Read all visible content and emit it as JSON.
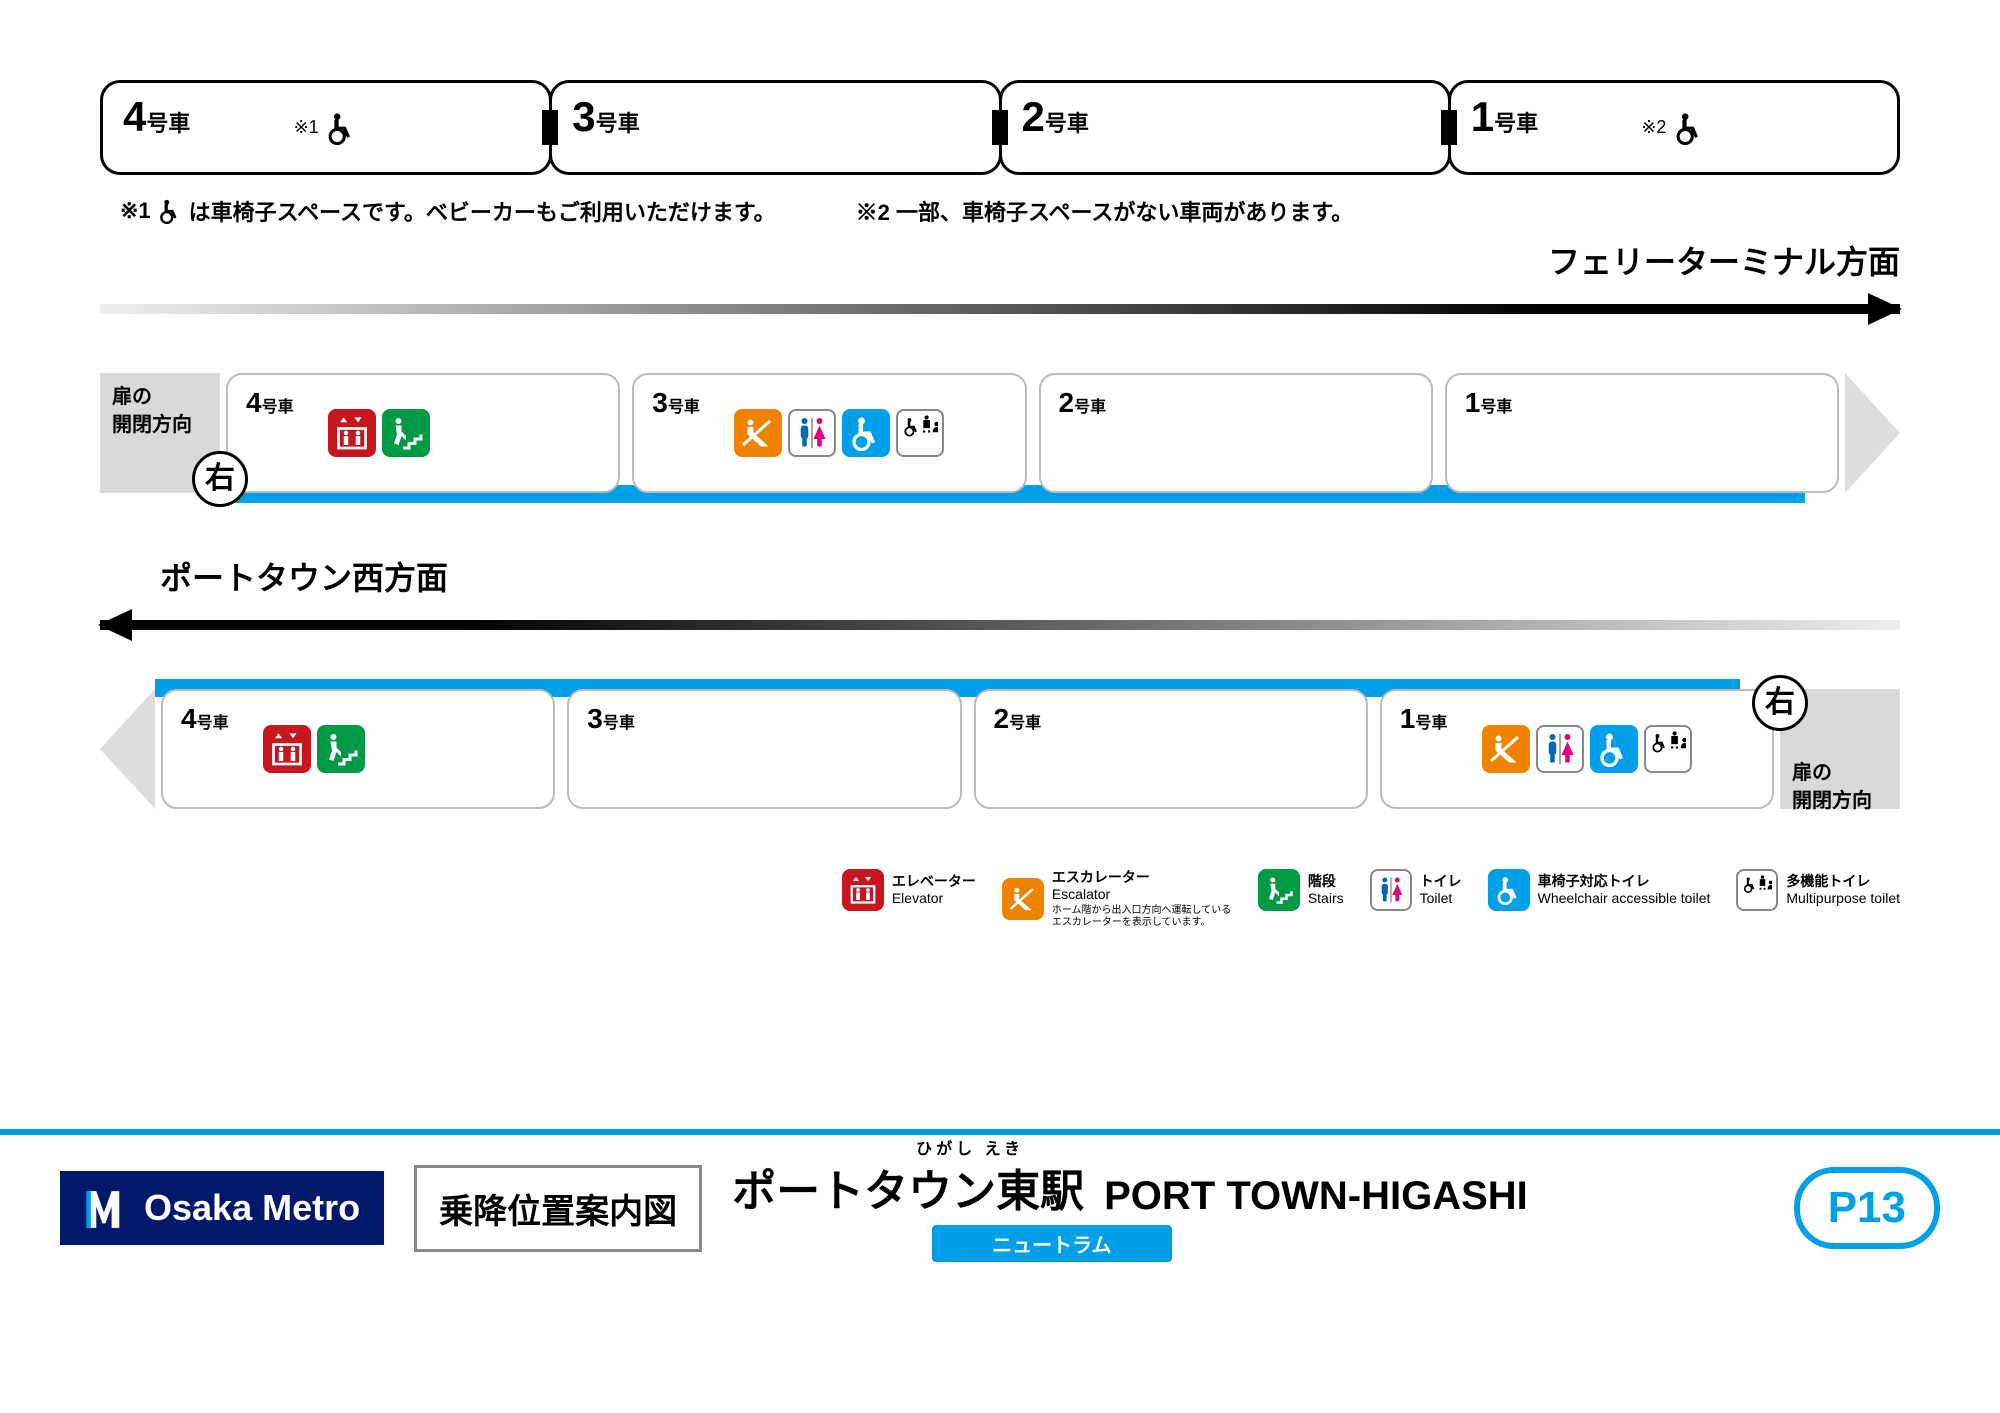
{
  "colors": {
    "line": "#00a0e9",
    "elevator": "#c7161d",
    "escalator": "#ef8200",
    "stairs": "#009944",
    "navy": "#00186b"
  },
  "top_train": [
    {
      "num": "4",
      "suffix": "号車",
      "wheelchair_note": "※1"
    },
    {
      "num": "3",
      "suffix": "号車"
    },
    {
      "num": "2",
      "suffix": "号車"
    },
    {
      "num": "1",
      "suffix": "号車",
      "wheelchair_note": "※2"
    }
  ],
  "notes": {
    "n1": "※1",
    "n1_text": "は車椅子スペースです。ベビーカーもご利用いただけます。",
    "n2": "※2 一部、車椅子スペースがない車両があります。"
  },
  "direction_a": "フェリーターミナル方面",
  "direction_b": "ポートタウン西方面",
  "door_label": "扉の\n開閉方向",
  "door_side": "右",
  "platform_a": [
    {
      "num": "4",
      "suffix": "号車",
      "icons": [
        "elevator",
        "stairs"
      ]
    },
    {
      "num": "3",
      "suffix": "号車",
      "icons": [
        "escalator",
        "toilet",
        "wctoilet",
        "multi"
      ]
    },
    {
      "num": "2",
      "suffix": "号車",
      "icons": []
    },
    {
      "num": "1",
      "suffix": "号車",
      "icons": []
    }
  ],
  "platform_b": [
    {
      "num": "4",
      "suffix": "号車",
      "icons": [
        "elevator",
        "stairs"
      ]
    },
    {
      "num": "3",
      "suffix": "号車",
      "icons": []
    },
    {
      "num": "2",
      "suffix": "号車",
      "icons": []
    },
    {
      "num": "1",
      "suffix": "号車",
      "icons": [
        "escalator",
        "toilet",
        "wctoilet",
        "multi"
      ]
    }
  ],
  "legend": [
    {
      "kind": "elevator",
      "jp": "エレベーター",
      "en": "Elevator"
    },
    {
      "kind": "escalator",
      "jp": "エスカレーター",
      "en": "Escalator",
      "note": "ホーム階から出入口方向へ運転しているエスカレーターを表示しています。"
    },
    {
      "kind": "stairs",
      "jp": "階段",
      "en": "Stairs"
    },
    {
      "kind": "toilet",
      "jp": "トイレ",
      "en": "Toilet"
    },
    {
      "kind": "wctoilet",
      "jp": "車椅子対応トイレ",
      "en": "Wheelchair accessible toilet"
    },
    {
      "kind": "multi",
      "jp": "多機能トイレ",
      "en": "Multipurpose toilet"
    }
  ],
  "footer": {
    "brand": "Osaka Metro",
    "guide": "乗降位置案内図",
    "station_jp": "ポートタウン東駅",
    "station_ruby": "ひがし えき",
    "station_en": "PORT TOWN-HIGASHI",
    "line_name": "ニュートラム",
    "station_code": "P13"
  }
}
